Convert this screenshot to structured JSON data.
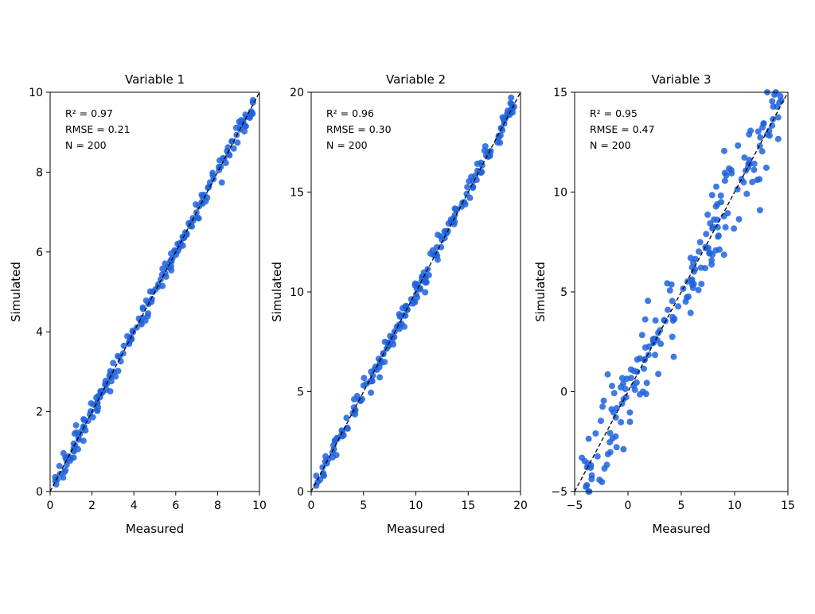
{
  "chart_data": [
    {
      "type": "scatter",
      "title": "Variable 1",
      "xlabel": "Measured",
      "ylabel": "Simulated",
      "xlim": [
        0,
        10
      ],
      "ylim": [
        0,
        10
      ],
      "xticks": [
        0,
        2,
        4,
        6,
        8,
        10
      ],
      "yticks": [
        0,
        2,
        4,
        6,
        8,
        10
      ],
      "xtick_labels": [
        "0",
        "2",
        "4",
        "6",
        "8",
        "10"
      ],
      "ytick_labels": [
        "0",
        "2",
        "4",
        "6",
        "8",
        "10"
      ],
      "reference_line": "1:1 dashed",
      "stats": [
        "R² = 0.97",
        "RMSE = 0.21",
        "N = 200"
      ],
      "point_color": "#1f63dd",
      "noise_sd": 0.13,
      "n": 200,
      "series": [
        {
          "x": [],
          "y": []
        }
      ]
    },
    {
      "type": "scatter",
      "title": "Variable 2",
      "xlabel": "Measured",
      "ylabel": "Simulated",
      "xlim": [
        0,
        20
      ],
      "ylim": [
        0,
        20
      ],
      "xticks": [
        0,
        5,
        10,
        15,
        20
      ],
      "yticks": [
        0,
        5,
        10,
        15,
        20
      ],
      "xtick_labels": [
        "0",
        "5",
        "10",
        "15",
        "20"
      ],
      "ytick_labels": [
        "0",
        "5",
        "10",
        "15",
        "20"
      ],
      "reference_line": "1:1 dashed",
      "stats": [
        "R² = 0.96",
        "RMSE = 0.30",
        "N = 200"
      ],
      "point_color": "#1f63dd",
      "noise_sd": 0.3,
      "n": 200,
      "series": [
        {
          "x": [],
          "y": []
        }
      ]
    },
    {
      "type": "scatter",
      "title": "Variable 3",
      "xlabel": "Measured",
      "ylabel": "Simulated",
      "xlim": [
        -5,
        15
      ],
      "ylim": [
        -5,
        15
      ],
      "xticks": [
        -5,
        0,
        5,
        10,
        15
      ],
      "yticks": [
        -5,
        0,
        5,
        10,
        15
      ],
      "xtick_labels": [
        "−5",
        "0",
        "5",
        "10",
        "15"
      ],
      "ytick_labels": [
        "−5",
        "0",
        "5",
        "10",
        "15"
      ],
      "reference_line": "1:1 dashed",
      "stats": [
        "R² = 0.95",
        "RMSE = 0.47",
        "N = 200"
      ],
      "point_color": "#1f63dd",
      "noise_sd": 1.15,
      "n": 200,
      "series": [
        {
          "x": [],
          "y": []
        }
      ]
    }
  ]
}
